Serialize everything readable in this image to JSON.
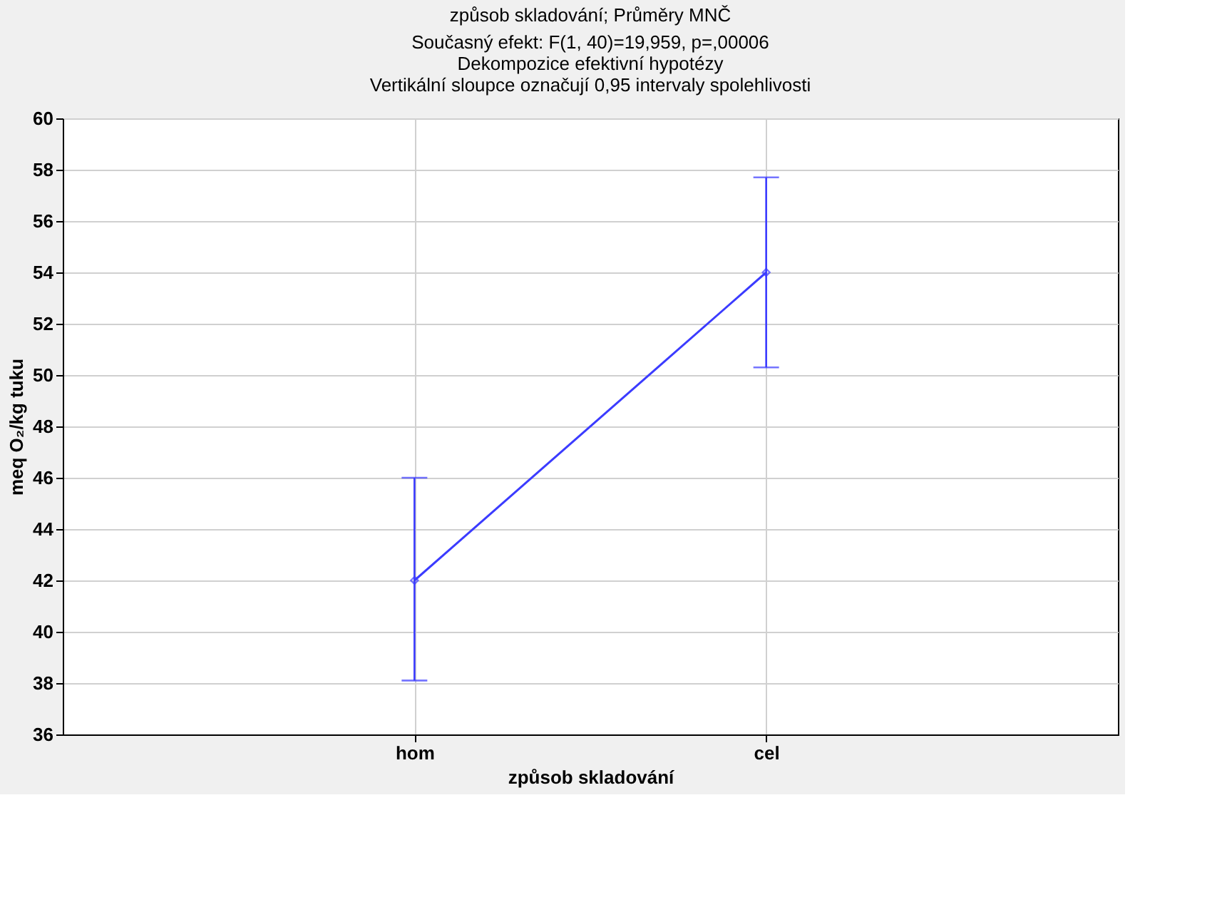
{
  "chart_data": {
    "type": "line",
    "title": "způsob skladování; Průměry MNČ",
    "subtitle": "Současný efekt: F(1, 40)=19,959, p=,00006\nDekompozice efektivní hypotézy\nVertikální sloupce označují 0,95 intervaly spolehlivosti",
    "xlabel": "způsob skladování",
    "ylabel": "meq O₂/kg tuku",
    "categories": [
      "hom",
      "cel"
    ],
    "series": [
      {
        "color": "#3b3bff",
        "values": [
          42.0,
          54.0
        ],
        "errors": [
          [
            38.1,
            46.0
          ],
          [
            50.3,
            57.7
          ]
        ]
      }
    ],
    "ylim": [
      36,
      60
    ],
    "yticks": [
      36,
      38,
      40,
      42,
      44,
      46,
      48,
      50,
      52,
      54,
      56,
      58,
      60
    ],
    "grid": true,
    "marker": "diamond",
    "line_style": "solid",
    "legend": false
  }
}
